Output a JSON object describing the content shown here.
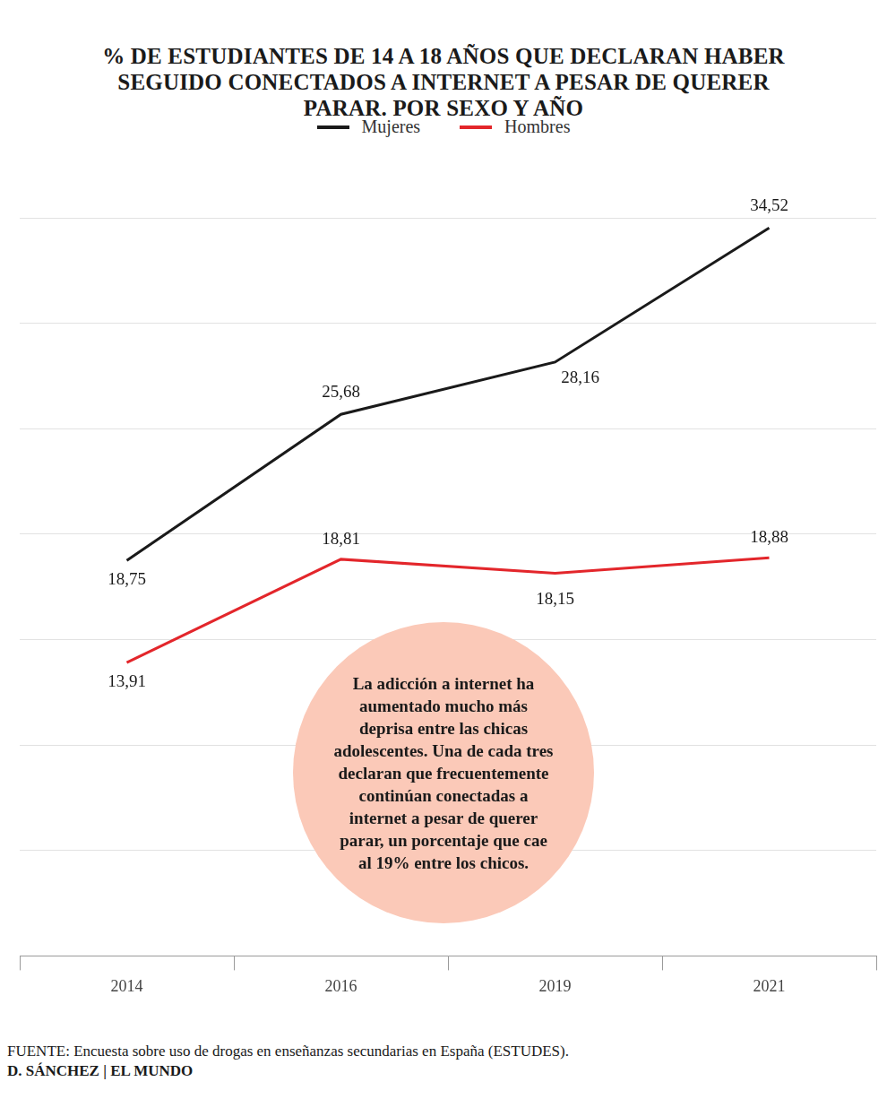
{
  "chart_data": {
    "type": "line",
    "title": "% DE ESTUDIANTES DE 14 A 18 AÑOS QUE DECLARAN HABER SEGUIDO CONECTADOS A INTERNET A PESAR DE QUERER PARAR. POR SEXO Y AÑO",
    "categories": [
      "2014",
      "2016",
      "2019",
      "2021"
    ],
    "series": [
      {
        "name": "Mujeres",
        "color": "#1a1a1a",
        "values": [
          18.75,
          25.68,
          28.16,
          34.52
        ],
        "value_labels": [
          "18,75",
          "25,68",
          "28,16",
          "34,52"
        ]
      },
      {
        "name": "Hombres",
        "color": "#e3262b",
        "values": [
          13.91,
          18.81,
          18.15,
          18.88
        ],
        "value_labels": [
          "13,91",
          "18,81",
          "18,15",
          "18,88"
        ]
      }
    ],
    "ylim": [
      0,
      35
    ],
    "yticks": [
      0,
      5,
      10,
      15,
      20,
      25,
      30,
      35
    ],
    "grid": true,
    "legend": "top",
    "data_labels": true,
    "tick_labels": "x",
    "annotations": [
      "La adicción a internet ha aumentado mucho más deprisa entre las chicas adolescentes. Una de cada tres declaran que frecuentemente continúan conectadas a internet a pesar de querer parar, un porcentaje que cae al 19% entre los chicos."
    ],
    "source_label": "FUENTE:",
    "source": "Encuesta sobre uso de drogas en enseñanzas secundarias en España (ESTUDES).",
    "credit": "D. SÁNCHEZ | EL MUNDO"
  }
}
